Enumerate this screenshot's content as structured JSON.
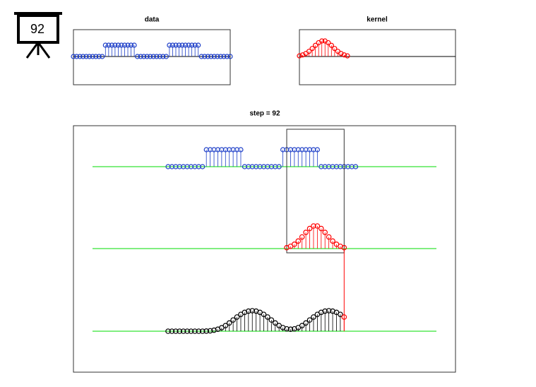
{
  "icon_label": "92",
  "chart_data": [
    {
      "type": "stem",
      "title": "data",
      "color": "#1e3fc8",
      "values": [
        0,
        0,
        0,
        0,
        0,
        0,
        0,
        0,
        0,
        0,
        1,
        1,
        1,
        1,
        1,
        1,
        1,
        1,
        1,
        1,
        0,
        0,
        0,
        0,
        0,
        0,
        0,
        0,
        0,
        0,
        1,
        1,
        1,
        1,
        1,
        1,
        1,
        1,
        1,
        1,
        0,
        0,
        0,
        0,
        0,
        0,
        0,
        0,
        0,
        0
      ]
    },
    {
      "type": "stem",
      "title": "kernel",
      "color": "#ff0000",
      "values": [
        0.04,
        0.1,
        0.19,
        0.33,
        0.51,
        0.71,
        0.88,
        0.99,
        0.99,
        0.88,
        0.71,
        0.51,
        0.33,
        0.19,
        0.1,
        0.04
      ]
    },
    {
      "type": "convolution",
      "title": "step = 92",
      "color": "#000000",
      "highlight_color": "#ff0000",
      "line_color": "#00dd00",
      "values": [
        0,
        0,
        0,
        0,
        0,
        0,
        0,
        0,
        0,
        0,
        0.04,
        0.14,
        0.33,
        0.65,
        1.16,
        1.86,
        2.75,
        3.73,
        4.72,
        5.6,
        6.26,
        6.67,
        6.81,
        6.67,
        6.26,
        5.6,
        4.72,
        3.73,
        2.75,
        1.86,
        1.2,
        0.79,
        0.65,
        0.79,
        1.2,
        1.86,
        2.75,
        3.73,
        4.72,
        5.6,
        6.26,
        6.67,
        6.81,
        6.67,
        6.26,
        5.6,
        4.72
      ]
    }
  ]
}
